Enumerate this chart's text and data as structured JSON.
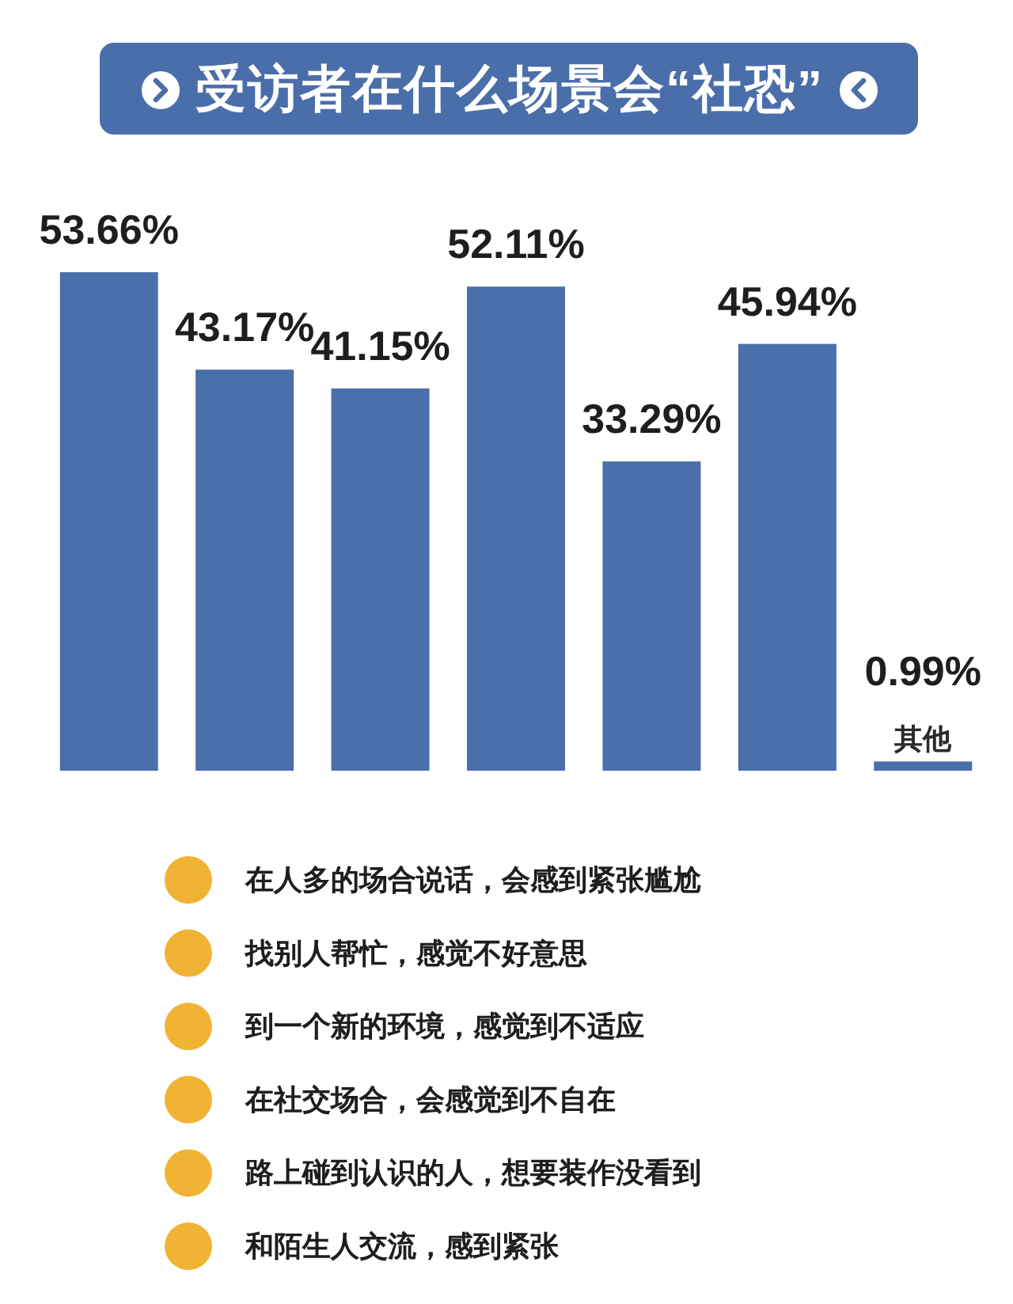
{
  "chart_data": {
    "type": "bar",
    "title": "受访者在什么场景会“社恐”",
    "categories": [
      null,
      null,
      null,
      null,
      null,
      null,
      "其他"
    ],
    "values": [
      53.66,
      43.17,
      41.15,
      52.11,
      33.29,
      45.94,
      0.99
    ],
    "color": "#4a6fab",
    "value_labels": [
      "53.66%",
      "43.17%",
      "41.15%",
      "52.11%",
      "33.29%",
      "45.94%",
      "0.99%"
    ],
    "annotations": [
      "在人多的场合说话，会感到紧张尴尬",
      "找别人帮忙，感觉不好意思",
      "到一个新的环境，感觉到不适应",
      "在社交场合，会感觉到不自在",
      "路上碰到认识的人，想要装作没看到",
      "和陌生人交流，感到紧张"
    ]
  }
}
